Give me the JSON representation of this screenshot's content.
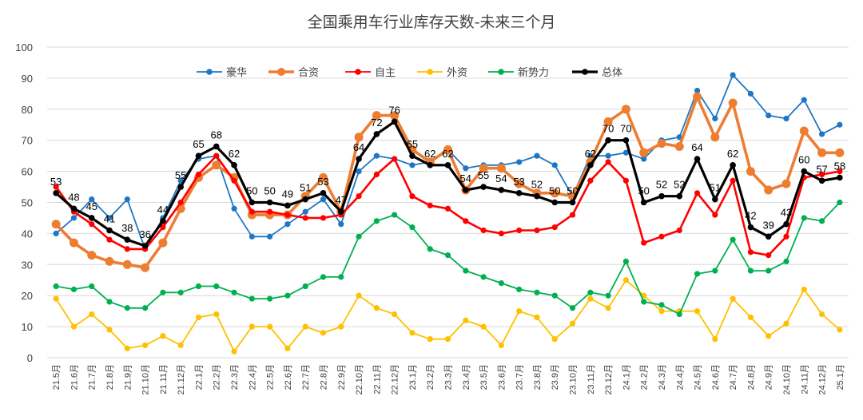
{
  "chart_data": {
    "type": "line",
    "title": "全国乘用车行业库存天数-未来三个月",
    "xlabel": "",
    "ylabel": "",
    "ylim": [
      0,
      100
    ],
    "yticks": [
      0,
      10,
      20,
      30,
      40,
      50,
      60,
      70,
      80,
      90,
      100
    ],
    "grid": true,
    "legend_position": "top",
    "categories": [
      "21.5月",
      "21.6月",
      "21.7月",
      "21.8月",
      "21.9月",
      "21.10月",
      "21.11月",
      "21.12月",
      "22.1月",
      "22.2月",
      "22.3月",
      "22.4月",
      "22.5月",
      "22.6月",
      "22.7月",
      "22.8月",
      "22.9月",
      "22.10月",
      "22.11月",
      "22.12月",
      "23.1月",
      "23.2月",
      "23.3月",
      "23.4月",
      "23.5月",
      "23.6月",
      "23.7月",
      "23.8月",
      "23.9月",
      "23.10月",
      "23.11月",
      "23.12月",
      "24.1月",
      "24.2月",
      "24.3月",
      "24.4月",
      "24.5月",
      "24.6月",
      "24.7月",
      "24.8月",
      "24.9月",
      "24.10月",
      "24.11月",
      "24.12月",
      "25.1月"
    ],
    "series": [
      {
        "name": "豪华",
        "color": "#1f77c4",
        "marker": "circle",
        "values": [
          40,
          45,
          51,
          45,
          51,
          35,
          45,
          57,
          64,
          65,
          48,
          39,
          39,
          43,
          47,
          51,
          43,
          60,
          65,
          64,
          62,
          63,
          67,
          61,
          62,
          62,
          63,
          65,
          62,
          52,
          65,
          65,
          66,
          64,
          70,
          71,
          86,
          77,
          91,
          85,
          78,
          77,
          83,
          72,
          75
        ]
      },
      {
        "name": "合资",
        "color": "#ed7d31",
        "marker": "circle",
        "values": [
          43,
          37,
          33,
          31,
          30,
          29,
          37,
          48,
          58,
          62,
          58,
          46,
          46,
          46,
          52,
          58,
          47,
          71,
          78,
          78,
          67,
          63,
          67,
          54,
          61,
          61,
          56,
          53,
          53,
          52,
          63,
          76,
          80,
          66,
          69,
          68,
          84,
          71,
          82,
          60,
          54,
          56,
          73,
          66,
          66
        ]
      },
      {
        "name": "自主",
        "color": "#ff0000",
        "marker": "circle",
        "values": [
          55,
          47,
          43,
          38,
          35,
          35,
          42,
          50,
          59,
          65,
          57,
          47,
          47,
          46,
          45,
          45,
          46,
          52,
          59,
          64,
          52,
          49,
          48,
          44,
          41,
          40,
          41,
          41,
          42,
          46,
          57,
          63,
          57,
          37,
          39,
          41,
          53,
          46,
          57,
          34,
          33,
          39,
          58,
          59,
          60
        ]
      },
      {
        "name": "外资",
        "color": "#ffc000",
        "marker": "circle",
        "values": [
          19,
          10,
          14,
          9,
          3,
          4,
          7,
          4,
          13,
          14,
          2,
          10,
          10,
          3,
          10,
          8,
          10,
          20,
          16,
          14,
          8,
          6,
          6,
          12,
          10,
          4,
          15,
          13,
          6,
          11,
          19,
          16,
          25,
          20,
          15,
          15,
          15,
          6,
          19,
          13,
          7,
          11,
          22,
          14,
          9
        ]
      },
      {
        "name": "新势力",
        "color": "#00b050",
        "marker": "circle",
        "values": [
          23,
          22,
          23,
          18,
          16,
          16,
          21,
          21,
          23,
          23,
          21,
          19,
          19,
          20,
          23,
          26,
          26,
          39,
          44,
          46,
          42,
          35,
          33,
          28,
          26,
          24,
          22,
          21,
          20,
          16,
          21,
          20,
          31,
          18,
          17,
          14,
          27,
          28,
          38,
          28,
          28,
          31,
          45,
          44,
          50
        ]
      },
      {
        "name": "总体",
        "color": "#000000",
        "marker": "circle",
        "labeled": true,
        "values": [
          53,
          48,
          45,
          41,
          38,
          36,
          44,
          55,
          65,
          68,
          62,
          50,
          50,
          49,
          51,
          53,
          47,
          64,
          72,
          76,
          65,
          62,
          62,
          54,
          55,
          54,
          53,
          52,
          50,
          50,
          62,
          70,
          70,
          50,
          52,
          52,
          64,
          51,
          62,
          42,
          39,
          43,
          60,
          57,
          58
        ],
        "labels": [
          "53",
          "48",
          "45",
          "41",
          "38",
          "36",
          "44",
          "55",
          "65",
          "68",
          "62",
          "50",
          "50",
          "49",
          "51",
          "53",
          "47",
          "64",
          "72",
          "76",
          "65",
          "62",
          "62",
          "54",
          "55",
          "54",
          "53",
          "52",
          "50",
          "50",
          "62",
          "70",
          "70",
          "50",
          "52",
          "52",
          "64",
          "51",
          "62",
          "42",
          "39",
          "43",
          "60",
          "57",
          "58"
        ]
      }
    ]
  }
}
